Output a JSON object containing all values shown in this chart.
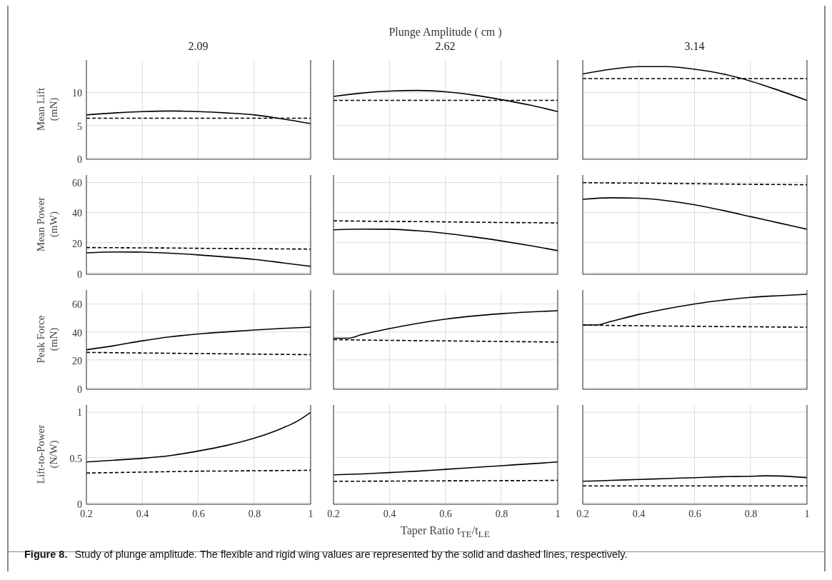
{
  "chart_data": [
    {
      "type": "line",
      "title": "2.09",
      "ylabel": "Mean Lift\n(mN)",
      "x": [
        0.2,
        0.3,
        0.4,
        0.5,
        0.6,
        0.7,
        0.8,
        0.9,
        1
      ],
      "xlim": [
        0.2,
        1
      ],
      "xticks": [
        0.2,
        0.4,
        0.6,
        0.8,
        1
      ],
      "ylim": [
        0,
        15
      ],
      "yticks": [
        0,
        5,
        10
      ],
      "grid": true,
      "marker": "none",
      "tick_labels": "y",
      "series": [
        {
          "color": "#000000",
          "line_style": "solid",
          "values": [
            6.7,
            7.0,
            7.2,
            7.3,
            7.2,
            7.0,
            6.7,
            6.1,
            5.4
          ]
        },
        {
          "color": "#000000",
          "line_style": "dashed",
          "values": [
            6.2,
            6.2,
            6.2,
            6.2,
            6.2,
            6.2,
            6.2,
            6.2,
            6.2
          ]
        }
      ]
    },
    {
      "type": "line",
      "title": "2.62",
      "annotations": [
        "Plunge Amplitude ( cm )"
      ],
      "x": [
        0.2,
        0.3,
        0.4,
        0.5,
        0.6,
        0.7,
        0.8,
        0.9,
        1
      ],
      "xlim": [
        0.2,
        1
      ],
      "xticks": [
        0.2,
        0.4,
        0.6,
        0.8,
        1
      ],
      "ylim": [
        0,
        15
      ],
      "yticks": [
        0,
        5,
        10
      ],
      "grid": true,
      "marker": "none",
      "tick_labels": false,
      "series": [
        {
          "color": "#000000",
          "line_style": "solid",
          "values": [
            9.5,
            10.0,
            10.3,
            10.4,
            10.2,
            9.7,
            9.0,
            8.2,
            7.2
          ]
        },
        {
          "color": "#000000",
          "line_style": "dashed",
          "values": [
            8.9,
            8.9,
            8.9,
            8.9,
            8.9,
            8.9,
            8.9,
            8.9,
            8.9
          ]
        }
      ]
    },
    {
      "type": "line",
      "title": "3.14",
      "x": [
        0.2,
        0.3,
        0.4,
        0.5,
        0.6,
        0.7,
        0.8,
        0.9,
        1
      ],
      "xlim": [
        0.2,
        1
      ],
      "xticks": [
        0.2,
        0.4,
        0.6,
        0.8,
        1
      ],
      "ylim": [
        0,
        15
      ],
      "yticks": [
        0,
        5,
        10
      ],
      "grid": true,
      "marker": "none",
      "tick_labels": false,
      "series": [
        {
          "color": "#000000",
          "line_style": "solid",
          "values": [
            12.9,
            13.6,
            14.0,
            14.0,
            13.6,
            12.9,
            11.8,
            10.4,
            8.9
          ]
        },
        {
          "color": "#000000",
          "line_style": "dashed",
          "values": [
            12.2,
            12.2,
            12.2,
            12.2,
            12.2,
            12.2,
            12.2,
            12.2,
            12.2
          ]
        }
      ]
    },
    {
      "type": "line",
      "ylabel": "Mean Power\n(mW)",
      "x": [
        0.2,
        0.3,
        0.4,
        0.5,
        0.6,
        0.7,
        0.8,
        0.9,
        1
      ],
      "xlim": [
        0.2,
        1
      ],
      "xticks": [
        0.2,
        0.4,
        0.6,
        0.8,
        1
      ],
      "ylim": [
        0,
        65
      ],
      "yticks": [
        0,
        20,
        40,
        60
      ],
      "grid": true,
      "marker": "none",
      "tick_labels": "y",
      "series": [
        {
          "color": "#000000",
          "line_style": "solid",
          "values": [
            14,
            14.6,
            14.5,
            13.8,
            12.7,
            11.3,
            9.7,
            7.5,
            5.2
          ]
        },
        {
          "color": "#000000",
          "line_style": "dashed",
          "values": [
            17.5,
            17.4,
            17.3,
            17.2,
            17.0,
            16.9,
            16.8,
            16.6,
            16.5
          ]
        }
      ]
    },
    {
      "type": "line",
      "x": [
        0.2,
        0.3,
        0.4,
        0.5,
        0.6,
        0.7,
        0.8,
        0.9,
        1
      ],
      "xlim": [
        0.2,
        1
      ],
      "xticks": [
        0.2,
        0.4,
        0.6,
        0.8,
        1
      ],
      "ylim": [
        0,
        65
      ],
      "yticks": [
        0,
        20,
        40,
        60
      ],
      "grid": true,
      "marker": "none",
      "tick_labels": false,
      "series": [
        {
          "color": "#000000",
          "line_style": "solid",
          "values": [
            29.1,
            29.6,
            29.5,
            28.5,
            26.8,
            24.5,
            21.8,
            18.8,
            15.5
          ]
        },
        {
          "color": "#000000",
          "line_style": "dashed",
          "values": [
            35,
            34.8,
            34.6,
            34.5,
            34.3,
            34.1,
            33.9,
            33.8,
            33.6
          ]
        }
      ]
    },
    {
      "type": "line",
      "x": [
        0.2,
        0.3,
        0.4,
        0.5,
        0.6,
        0.7,
        0.8,
        0.9,
        1
      ],
      "xlim": [
        0.2,
        1
      ],
      "xticks": [
        0.2,
        0.4,
        0.6,
        0.8,
        1
      ],
      "ylim": [
        0,
        65
      ],
      "yticks": [
        0,
        20,
        40,
        60
      ],
      "grid": true,
      "marker": "none",
      "tick_labels": false,
      "series": [
        {
          "color": "#000000",
          "line_style": "solid",
          "values": [
            49.1,
            50.1,
            49.8,
            48.2,
            45.5,
            41.8,
            37.7,
            33.6,
            29.5
          ]
        },
        {
          "color": "#000000",
          "line_style": "dashed",
          "values": [
            60,
            59.8,
            59.7,
            59.5,
            59.3,
            59.1,
            58.9,
            58.8,
            58.6
          ]
        }
      ]
    },
    {
      "type": "line",
      "ylabel": "Peak Force\n(mN)",
      "x": [
        0.2,
        0.3,
        0.4,
        0.5,
        0.6,
        0.7,
        0.8,
        0.9,
        1
      ],
      "xlim": [
        0.2,
        1
      ],
      "xticks": [
        0.2,
        0.4,
        0.6,
        0.8,
        1
      ],
      "ylim": [
        0,
        70
      ],
      "yticks": [
        0,
        20,
        40,
        60
      ],
      "grid": true,
      "marker": "none",
      "tick_labels": "y",
      "series": [
        {
          "color": "#000000",
          "line_style": "solid",
          "values": [
            27.9,
            30.8,
            34.2,
            37,
            39,
            40.5,
            41.8,
            42.9,
            43.8
          ]
        },
        {
          "color": "#000000",
          "line_style": "dashed",
          "values": [
            26,
            25.8,
            25.6,
            25.4,
            25.2,
            25,
            24.8,
            24.6,
            24.4
          ]
        }
      ]
    },
    {
      "type": "line",
      "x": [
        0.2,
        0.25,
        0.3,
        0.4,
        0.5,
        0.6,
        0.7,
        0.8,
        0.9,
        1
      ],
      "xlim": [
        0.2,
        1
      ],
      "xticks": [
        0.2,
        0.4,
        0.6,
        0.8,
        1
      ],
      "ylim": [
        0,
        70
      ],
      "yticks": [
        0,
        20,
        40,
        60
      ],
      "grid": true,
      "marker": "none",
      "tick_labels": false,
      "series": [
        {
          "color": "#000000",
          "line_style": "solid",
          "values": [
            36,
            36,
            38.5,
            42.8,
            46.5,
            49.5,
            51.7,
            53.3,
            54.5,
            55.4
          ]
        },
        {
          "color": "#000000",
          "line_style": "dashed",
          "values": [
            35,
            34.9,
            34.7,
            34.5,
            34.3,
            34.1,
            33.9,
            33.7,
            33.5,
            33.3
          ]
        }
      ]
    },
    {
      "type": "line",
      "x": [
        0.2,
        0.25,
        0.3,
        0.4,
        0.5,
        0.6,
        0.7,
        0.8,
        0.9,
        1
      ],
      "xlim": [
        0.2,
        1
      ],
      "xticks": [
        0.2,
        0.4,
        0.6,
        0.8,
        1
      ],
      "ylim": [
        0,
        70
      ],
      "yticks": [
        0,
        20,
        40,
        60
      ],
      "grid": true,
      "marker": "none",
      "tick_labels": false,
      "series": [
        {
          "color": "#000000",
          "line_style": "solid",
          "values": [
            45.3,
            45.3,
            47.8,
            52.8,
            56.8,
            60.2,
            62.8,
            64.8,
            66,
            67
          ]
        },
        {
          "color": "#000000",
          "line_style": "dashed",
          "values": [
            45.3,
            45.2,
            45,
            44.8,
            44.6,
            44.4,
            44.2,
            44.1,
            43.9,
            43.8
          ]
        }
      ]
    },
    {
      "type": "line",
      "ylabel": "Lift-to-Power\n(N/W)",
      "x": [
        0.2,
        0.3,
        0.4,
        0.5,
        0.6,
        0.7,
        0.8,
        0.9,
        0.95,
        1
      ],
      "xlim": [
        0.2,
        1
      ],
      "xticks": [
        0.2,
        0.4,
        0.6,
        0.8,
        1
      ],
      "ylim": [
        0,
        1.08
      ],
      "yticks": [
        0,
        0.5,
        1
      ],
      "grid": true,
      "marker": "none",
      "series": [
        {
          "color": "#000000",
          "line_style": "solid",
          "values": [
            0.46,
            0.48,
            0.5,
            0.53,
            0.58,
            0.64,
            0.72,
            0.83,
            0.9,
            1.0
          ]
        },
        {
          "color": "#000000",
          "line_style": "dashed",
          "values": [
            0.34,
            0.345,
            0.35,
            0.355,
            0.36,
            0.362,
            0.365,
            0.367,
            0.368,
            0.37
          ]
        }
      ]
    },
    {
      "type": "line",
      "xlabel": "Taper Ratio t$_{TE}$/t$_{LE}$",
      "annotations": [
        "Figure 8.",
        "Study of plunge amplitude. The flexible and rigid wing values are represented by the solid and dashed lines, respectively."
      ],
      "x": [
        0.2,
        0.3,
        0.4,
        0.5,
        0.6,
        0.7,
        0.8,
        0.9,
        1
      ],
      "xlim": [
        0.2,
        1
      ],
      "xticks": [
        0.2,
        0.4,
        0.6,
        0.8,
        1
      ],
      "ylim": [
        0,
        1.08
      ],
      "yticks": [
        0,
        0.5,
        1
      ],
      "grid": true,
      "marker": "none",
      "tick_labels": "x",
      "series": [
        {
          "color": "#000000",
          "line_style": "solid",
          "values": [
            0.32,
            0.33,
            0.345,
            0.36,
            0.38,
            0.4,
            0.42,
            0.44,
            0.46
          ]
        },
        {
          "color": "#000000",
          "line_style": "dashed",
          "values": [
            0.25,
            0.251,
            0.252,
            0.254,
            0.255,
            0.256,
            0.257,
            0.258,
            0.26
          ]
        }
      ]
    },
    {
      "type": "line",
      "x": [
        0.2,
        0.3,
        0.4,
        0.5,
        0.6,
        0.7,
        0.8,
        0.85,
        0.9,
        1
      ],
      "xlim": [
        0.2,
        1
      ],
      "xticks": [
        0.2,
        0.4,
        0.6,
        0.8,
        1
      ],
      "ylim": [
        0,
        1.08
      ],
      "yticks": [
        0,
        0.5,
        1
      ],
      "grid": true,
      "marker": "none",
      "tick_labels": "x",
      "series": [
        {
          "color": "#000000",
          "line_style": "solid",
          "values": [
            0.25,
            0.26,
            0.27,
            0.28,
            0.29,
            0.3,
            0.305,
            0.31,
            0.308,
            0.29
          ]
        },
        {
          "color": "#000000",
          "line_style": "dashed",
          "values": [
            0.2,
            0.2,
            0.2,
            0.2,
            0.2,
            0.2,
            0.2,
            0.2,
            0.2,
            0.2
          ]
        }
      ]
    }
  ]
}
